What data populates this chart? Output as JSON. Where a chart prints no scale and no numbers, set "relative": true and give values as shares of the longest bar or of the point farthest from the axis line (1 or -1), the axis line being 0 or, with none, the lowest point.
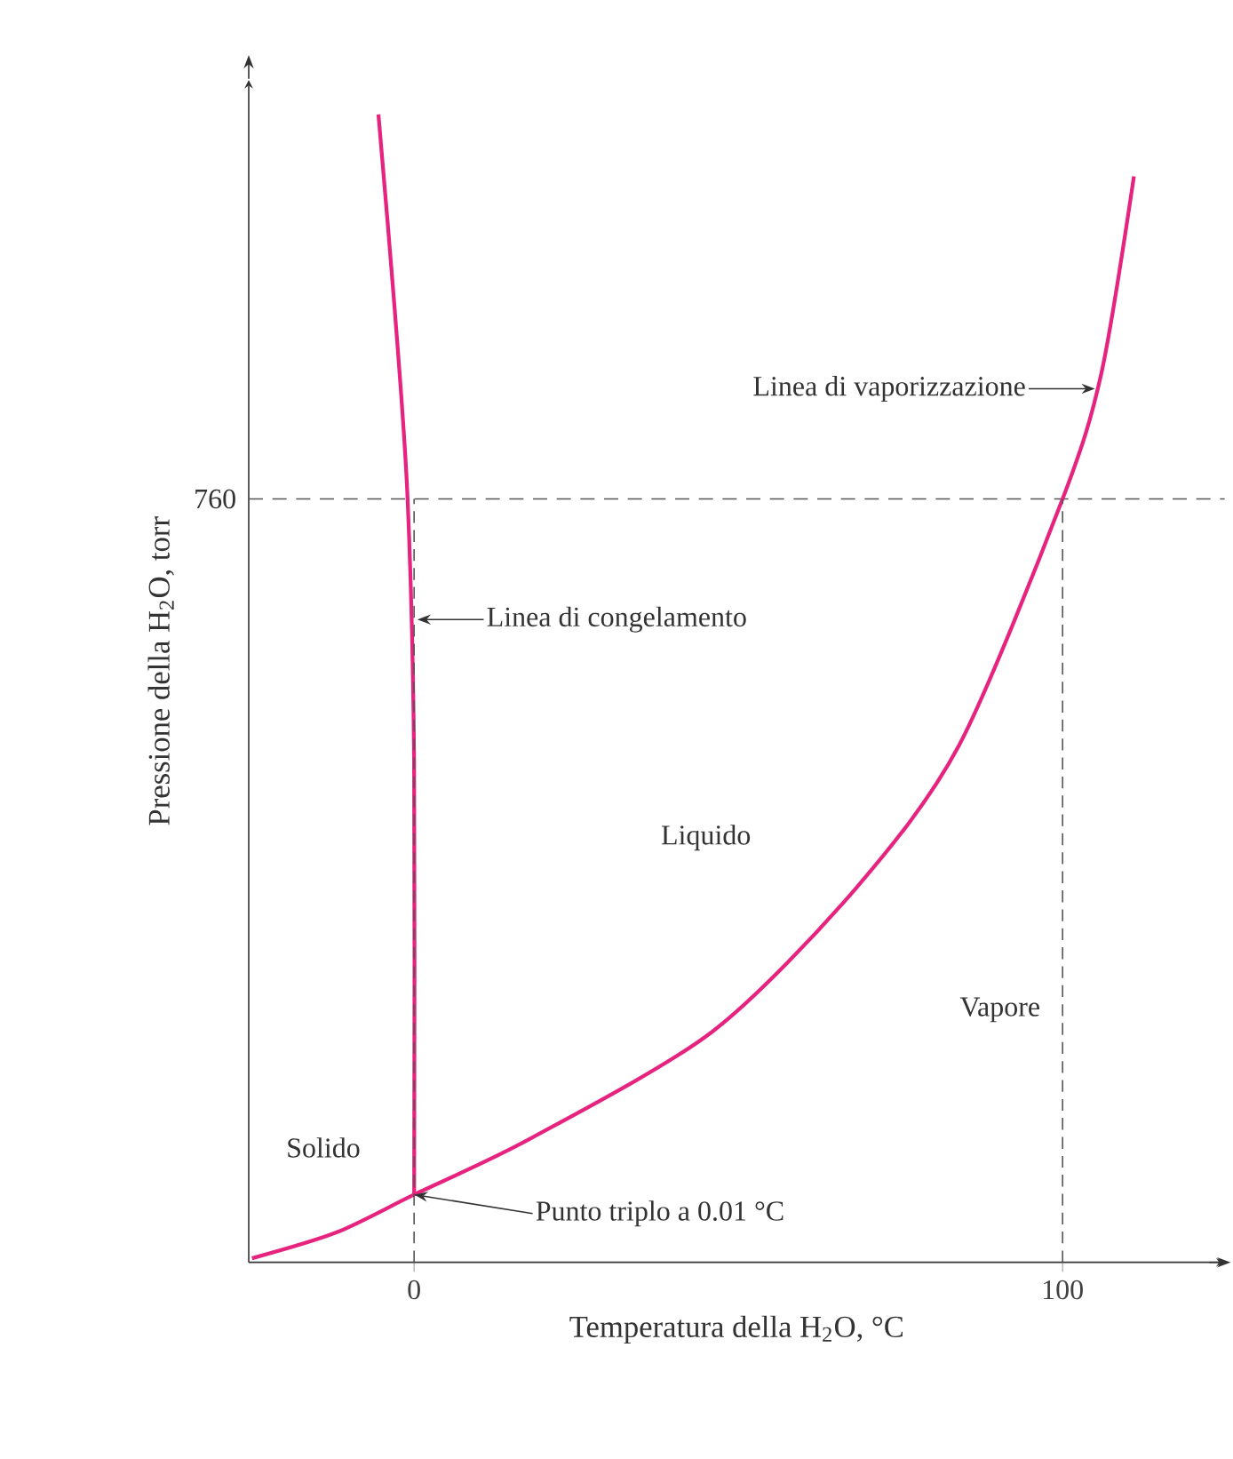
{
  "chart_data": {
    "type": "line",
    "xlabel": "Temperatura della H$_{2}$O, °C",
    "ylabel": "Pressione della H$_{2}$O, torr",
    "relative": true,
    "xlim": [
      -25.5,
      125
    ],
    "xticks": [
      0,
      100
    ],
    "grid": false,
    "marker": "none",
    "line_style": "solid",
    "series": [
      {
        "color": "#e6247f",
        "x": [
          -5.5,
          -3,
          -1,
          0,
          0.01
        ],
        "values": [
          1,
          0.831,
          0.665,
          0.437,
          0.059
        ]
      },
      {
        "color": "#e6247f",
        "x": [
          -25,
          -12,
          0.01,
          18,
          46,
          68,
          84,
          100,
          106,
          111
        ],
        "values": [
          0.0035,
          0.026,
          0.059,
          0.108,
          0.201,
          0.325,
          0.45,
          0.665,
          0.775,
          0.946
        ]
      },
      {
        "color": "#555555",
        "line_style": "dashed",
        "x": [
          0,
          0
        ],
        "values": [
          0,
          0.665
        ]
      },
      {
        "color": "#555555",
        "line_style": "dashed",
        "x": [
          100,
          100
        ],
        "values": [
          0,
          0.665
        ]
      }
    ],
    "ref_lines": [
      {
        "axis": "y",
        "value": 0.665,
        "color": "#555555",
        "line_style": "dashed"
      }
    ],
    "annotations": [
      {
        "text": "Linea di vaporizzazione",
        "x": 105,
        "y": 0.761
      },
      {
        "text": "Linea di congelamento",
        "x": 0.5,
        "y": 0.56
      },
      {
        "text": "Punto triplo a 0.01 °C",
        "x": 0.01,
        "y": 0.059
      },
      "Liquido",
      "Vapore",
      "Solido",
      "760"
    ]
  }
}
